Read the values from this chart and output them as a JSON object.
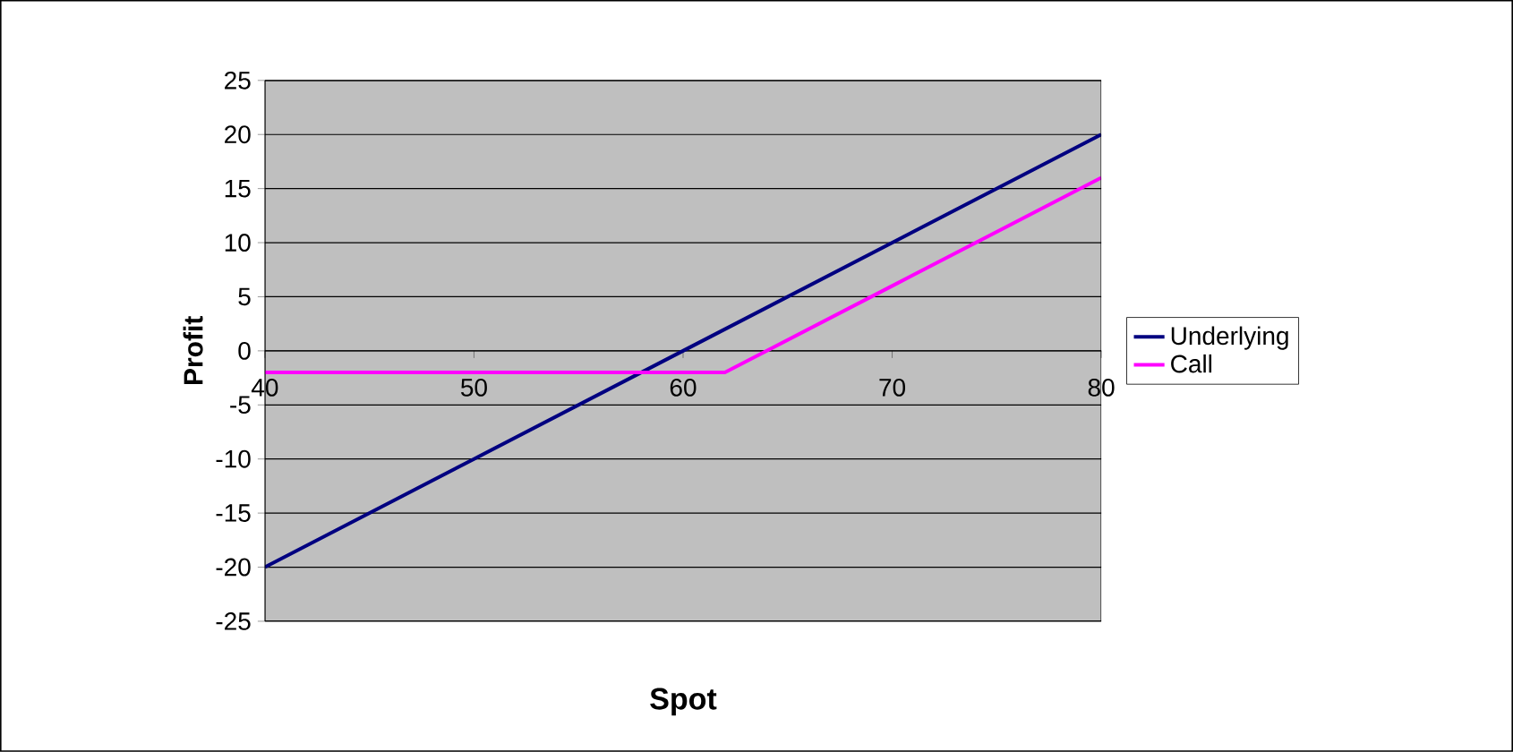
{
  "chart_data": {
    "type": "line",
    "xlabel": "Spot",
    "ylabel": "Profit",
    "xlim": [
      40,
      80
    ],
    "xticks": [
      40,
      50,
      60,
      70,
      80
    ],
    "ylim": [
      -25,
      25
    ],
    "yticks": [
      -25,
      -20,
      -15,
      -10,
      -5,
      0,
      5,
      10,
      15,
      20,
      25
    ],
    "grid": "y",
    "legend": "right",
    "marker": "none",
    "line_style": "solid",
    "series": [
      {
        "name": "Underlying",
        "color": "#000080",
        "x": [
          40,
          50,
          60,
          70,
          80
        ],
        "values": [
          -20,
          -10,
          0,
          10,
          20
        ]
      },
      {
        "name": "Call",
        "color": "#ff00ff",
        "x": [
          40,
          50,
          60,
          62,
          70,
          80
        ],
        "values": [
          -2,
          -2,
          -2,
          -2,
          6,
          16
        ]
      }
    ]
  }
}
